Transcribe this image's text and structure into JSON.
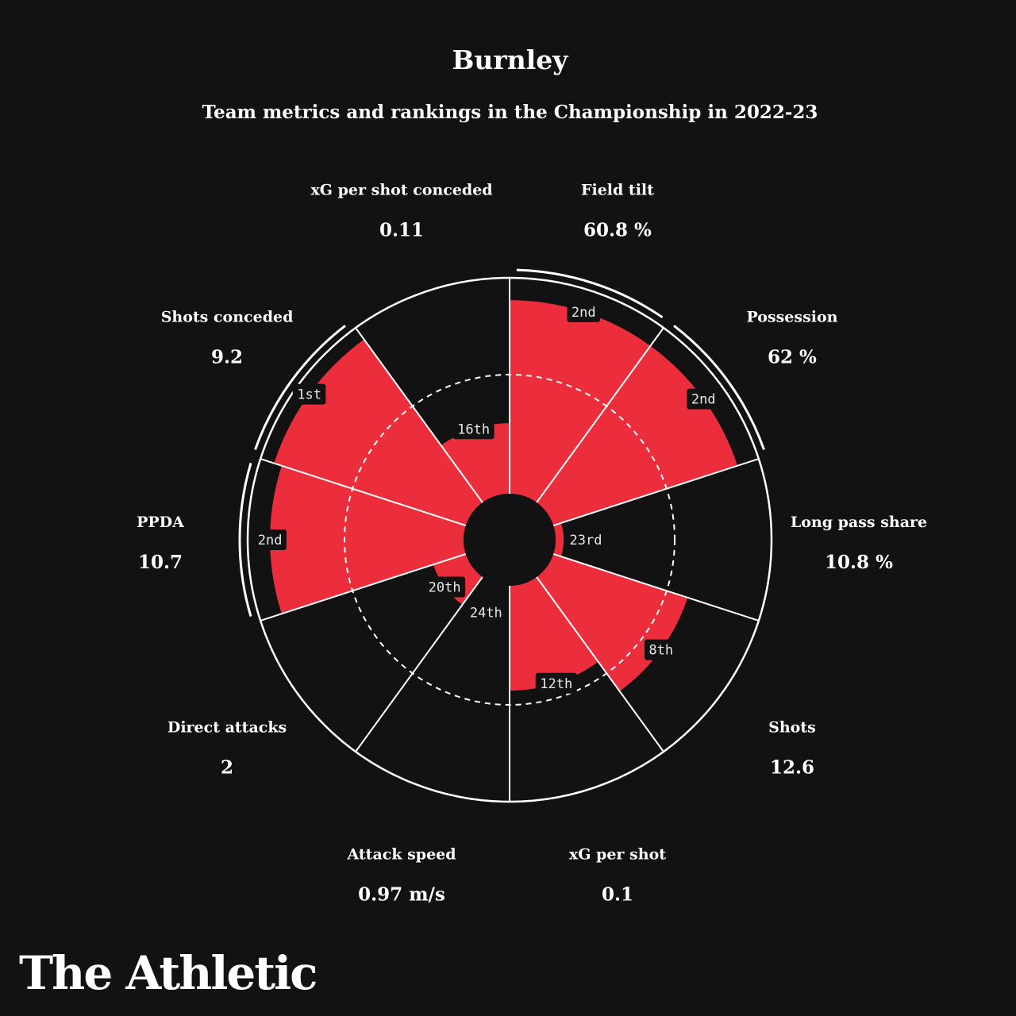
{
  "header": {
    "title": "Burnley",
    "subtitle": "Team metrics and rankings in the Championship in 2022-23"
  },
  "brand": {
    "logo_text": "The Athletic"
  },
  "colors": {
    "background": "#121212",
    "bar": "#ec2d3b",
    "lines": "#ffffff"
  },
  "chart_data": {
    "type": "polar-bar",
    "title": "Burnley",
    "subtitle": "Team metrics and rankings in the Championship in 2022-23",
    "rank_scale": {
      "best": 1,
      "worst": 24
    },
    "reference_ring": "dashed circle at league median",
    "metrics": [
      {
        "name": "Field tilt",
        "value": "60.8 %",
        "rank": "2nd",
        "percentile": 0.96
      },
      {
        "name": "Possession",
        "value": "62 %",
        "rank": "2nd",
        "percentile": 0.96
      },
      {
        "name": "Long pass share",
        "value": "10.8 %",
        "rank": "23rd",
        "percentile": 0.04
      },
      {
        "name": "Shots",
        "value": "12.6",
        "rank": "8th",
        "percentile": 0.7
      },
      {
        "name": "xG per shot",
        "value": "0.1",
        "rank": "12th",
        "percentile": 0.52
      },
      {
        "name": "Attack speed",
        "value": "0.97 m/s",
        "rank": "24th",
        "percentile": 0.0
      },
      {
        "name": "Direct attacks",
        "value": "2",
        "rank": "20th",
        "percentile": 0.17
      },
      {
        "name": "PPDA",
        "value": "10.7",
        "rank": "2nd",
        "percentile": 0.96
      },
      {
        "name": "Shots conceded",
        "value": "9.2",
        "rank": "1st",
        "percentile": 1.0
      },
      {
        "name": "xG per shot conceded",
        "value": "0.11",
        "rank": "16th",
        "percentile": 0.35
      }
    ]
  }
}
